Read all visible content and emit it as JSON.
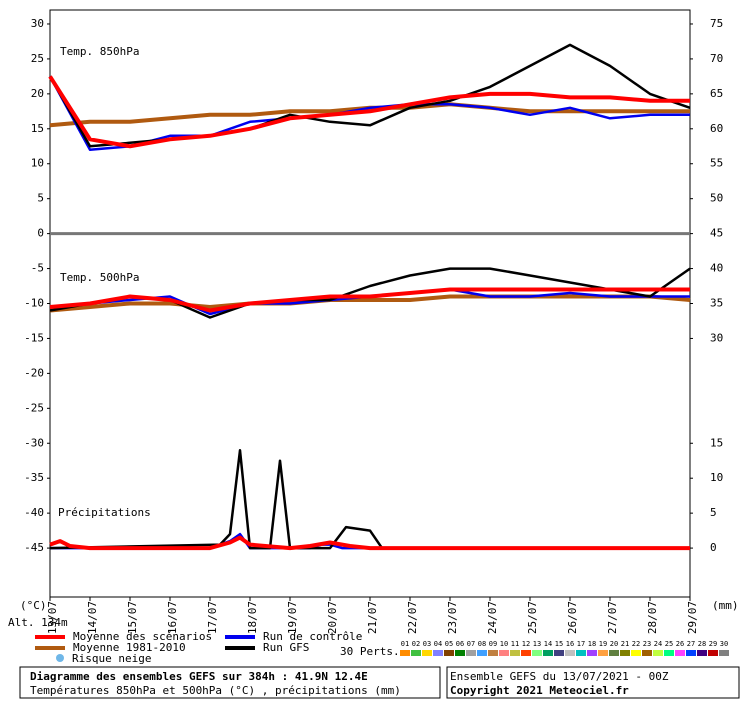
{
  "chart_data": {
    "type": "line",
    "title": "Diagramme des ensembles GEFS sur 384h : 41.9N 12.4E",
    "subtitle": "Températures 850hPa et 500hPa (°C) , précipitations (mm)",
    "run": "Ensemble GEFS du 13/07/2021 - 00Z",
    "copyright": "Copyright 2021 Meteociel.fr",
    "altitude": "Alt. 134m",
    "y_unit": "(°C)",
    "y2_unit": "(mm)",
    "panels": [
      "Temp. 850hPa",
      "Temp. 500hPa",
      "Précipitations"
    ],
    "snow_label": "Risque neige",
    "perts_label": "30 Perts.",
    "perts": [
      {
        "name": "01",
        "color": "#ff8c00"
      },
      {
        "name": "02",
        "color": "#40c040"
      },
      {
        "name": "03",
        "color": "#ffd700"
      },
      {
        "name": "04",
        "color": "#8080ff"
      },
      {
        "name": "05",
        "color": "#804000"
      },
      {
        "name": "06",
        "color": "#008000"
      },
      {
        "name": "07",
        "color": "#a0a0a0"
      },
      {
        "name": "08",
        "color": "#40a0ff"
      },
      {
        "name": "09",
        "color": "#c08040"
      },
      {
        "name": "10",
        "color": "#ff8080"
      },
      {
        "name": "11",
        "color": "#c0c040"
      },
      {
        "name": "12",
        "color": "#ff4000"
      },
      {
        "name": "13",
        "color": "#80ff80"
      },
      {
        "name": "14",
        "color": "#00a060"
      },
      {
        "name": "15",
        "color": "#404080"
      },
      {
        "name": "16",
        "color": "#c0c0c0"
      },
      {
        "name": "17",
        "color": "#00c0c0"
      },
      {
        "name": "18",
        "color": "#a040ff"
      },
      {
        "name": "19",
        "color": "#ffa040"
      },
      {
        "name": "20",
        "color": "#608040"
      },
      {
        "name": "21",
        "color": "#808000"
      },
      {
        "name": "22",
        "color": "#ffff00"
      },
      {
        "name": "23",
        "color": "#a06000"
      },
      {
        "name": "24",
        "color": "#c0ff40"
      },
      {
        "name": "25",
        "color": "#00ff80"
      },
      {
        "name": "26",
        "color": "#ff40ff"
      },
      {
        "name": "27",
        "color": "#0040ff"
      },
      {
        "name": "28",
        "color": "#400080"
      },
      {
        "name": "29",
        "color": "#c00000"
      },
      {
        "name": "30",
        "color": "#808080"
      }
    ],
    "xlim": [
      0,
      16
    ],
    "xticks": [
      {
        "value": 0,
        "label": "13/07"
      },
      {
        "value": 1,
        "label": "14/07"
      },
      {
        "value": 2,
        "label": "15/07"
      },
      {
        "value": 3,
        "label": "16/07"
      },
      {
        "value": 4,
        "label": "17/07"
      },
      {
        "value": 5,
        "label": "18/07"
      },
      {
        "value": 6,
        "label": "19/07"
      },
      {
        "value": 7,
        "label": "20/07"
      },
      {
        "value": 8,
        "label": "21/07"
      },
      {
        "value": 9,
        "label": "22/07"
      },
      {
        "value": 10,
        "label": "23/07"
      },
      {
        "value": 11,
        "label": "24/07"
      },
      {
        "value": 12,
        "label": "25/07"
      },
      {
        "value": 13,
        "label": "26/07"
      },
      {
        "value": 14,
        "label": "27/07"
      },
      {
        "value": 15,
        "label": "28/07"
      },
      {
        "value": 16,
        "label": "29/07"
      }
    ],
    "ylim": [
      -52,
      32
    ],
    "yticks": [
      30,
      25,
      20,
      15,
      10,
      5,
      0,
      -5,
      -10,
      -15,
      -20,
      -25,
      -30,
      -35,
      -40,
      -45
    ],
    "y2lim": [
      -7,
      77
    ],
    "y2ticks": [
      75,
      70,
      65,
      60,
      55,
      50,
      45,
      40,
      35,
      30,
      15,
      10,
      5,
      0
    ],
    "x": [
      0,
      1,
      2,
      3,
      4,
      5,
      6,
      7,
      8,
      9,
      10,
      11,
      12,
      13,
      14,
      15,
      16
    ],
    "series": [
      {
        "name": "Moyenne des scénarios",
        "color": "#ff0000",
        "t850": [
          22.5,
          13.5,
          12.5,
          13.5,
          14,
          15,
          16.5,
          17,
          17.5,
          18.5,
          19.5,
          20,
          20,
          19.5,
          19.5,
          19,
          19
        ],
        "t500": [
          -10.5,
          -10,
          -9,
          -9.5,
          -11,
          -10,
          -9.5,
          -9,
          -9,
          -8.5,
          -8,
          -8,
          -8,
          -8,
          -8,
          -8,
          -8
        ],
        "precip_x": [
          0,
          0.25,
          0.5,
          1,
          4,
          4.5,
          4.75,
          5,
          6,
          6.5,
          7,
          7.5,
          8,
          16
        ],
        "precip": [
          0.5,
          1,
          0.3,
          0,
          0,
          0.8,
          1.5,
          0.5,
          0,
          0.3,
          0.8,
          0.3,
          0,
          0
        ]
      },
      {
        "name": "Moyenne 1981-2010",
        "color": "#b05a10",
        "t850": [
          15.5,
          16,
          16,
          16.5,
          17,
          17,
          17.5,
          17.5,
          18,
          18,
          18.5,
          18,
          17.5,
          17.5,
          17.5,
          17.5,
          17.5
        ],
        "t500": [
          -11,
          -10.5,
          -10,
          -10,
          -10.5,
          -10,
          -10,
          -9.5,
          -9.5,
          -9.5,
          -9,
          -9,
          -9,
          -9,
          -9,
          -9,
          -9.5
        ]
      },
      {
        "name": "Run de contrôle",
        "color": "#0000ee",
        "t850": [
          22.5,
          12,
          12.5,
          14,
          14,
          16,
          16.5,
          17,
          18,
          18.5,
          18.5,
          18,
          17,
          18,
          16.5,
          17,
          17
        ],
        "t500": [
          -10.5,
          -10,
          -9.5,
          -9,
          -11.5,
          -10,
          -10,
          -9.5,
          -9,
          -8.5,
          -8,
          -9,
          -9,
          -8.5,
          -9,
          -9,
          -9
        ],
        "precip_x": [
          0,
          4,
          4.5,
          4.75,
          5,
          6.5,
          6.8,
          7,
          7.3,
          16
        ],
        "precip": [
          0,
          0,
          1,
          2,
          0,
          0,
          0.5,
          0.5,
          0,
          0
        ]
      },
      {
        "name": "Run GFS",
        "color": "#000000",
        "t850": [
          22.5,
          12.5,
          13,
          13.5,
          14,
          15,
          17,
          16,
          15.5,
          18,
          19,
          21,
          24,
          27,
          24,
          20,
          18
        ],
        "t500": [
          -11,
          -10,
          -9,
          -9.5,
          -12,
          -10,
          -9.5,
          -9.5,
          -7.5,
          -6,
          -5,
          -5,
          -6,
          -7,
          -8,
          -9,
          -5
        ],
        "precip_x": [
          0,
          4.25,
          4.5,
          4.75,
          5,
          5.5,
          5.75,
          6,
          7,
          7.4,
          8,
          8.3,
          16
        ],
        "precip": [
          0,
          0.5,
          2,
          14,
          0,
          0,
          12.5,
          0,
          0,
          3,
          2.5,
          0,
          0
        ]
      }
    ]
  }
}
